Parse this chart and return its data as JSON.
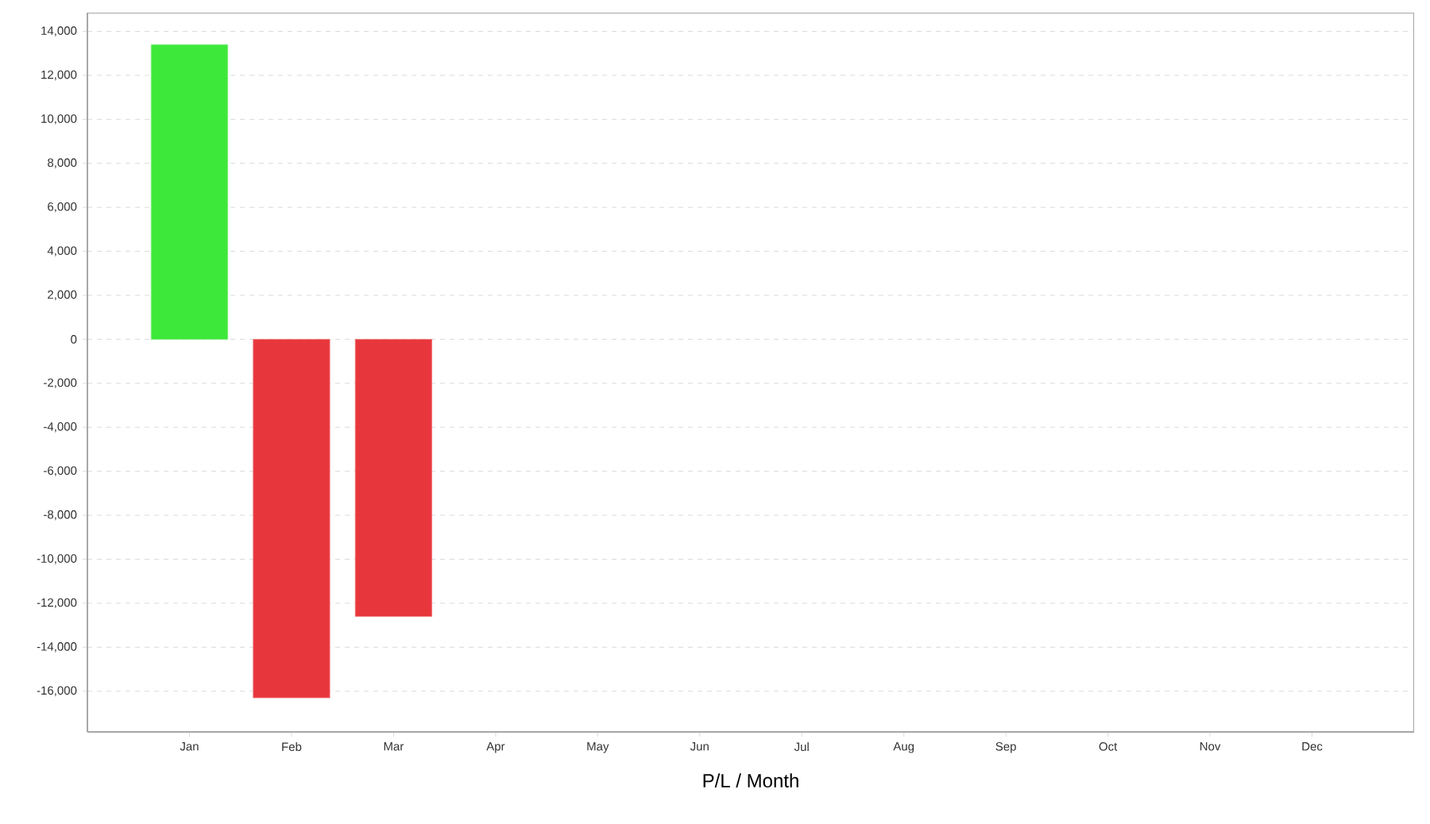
{
  "chart_data": {
    "type": "bar",
    "xlabel": "P/L / Month",
    "categories": [
      "Jan",
      "Feb",
      "Mar",
      "Apr",
      "May",
      "Jun",
      "Jul",
      "Aug",
      "Sep",
      "Oct",
      "Nov",
      "Dec"
    ],
    "values": [
      13400,
      -16300,
      -12600,
      null,
      null,
      null,
      null,
      null,
      null,
      null,
      null,
      null
    ],
    "colors": [
      "#3ee83a",
      "#e8373c",
      "#e8373c",
      "#e8373c",
      "#e8373c",
      "#e8373c",
      "#e8373c",
      "#e8373c",
      "#e8373c",
      "#e8373c",
      "#e8373c",
      "#e8373c"
    ],
    "ylim": [
      -17850,
      14850
    ],
    "yticks": [
      {
        "value": 14000,
        "label": "14,000"
      },
      {
        "value": 12000,
        "label": "12,000"
      },
      {
        "value": 10000,
        "label": "10,000"
      },
      {
        "value": 8000,
        "label": "8,000"
      },
      {
        "value": 6000,
        "label": "6,000"
      },
      {
        "value": 4000,
        "label": "4,000"
      },
      {
        "value": 2000,
        "label": "2,000"
      },
      {
        "value": 0,
        "label": "0"
      },
      {
        "value": -2000,
        "label": "-2,000"
      },
      {
        "value": -4000,
        "label": "-4,000"
      },
      {
        "value": -6000,
        "label": "-6,000"
      },
      {
        "value": -8000,
        "label": "-8,000"
      },
      {
        "value": -10000,
        "label": "-10,000"
      },
      {
        "value": -12000,
        "label": "-12,000"
      },
      {
        "value": -14000,
        "label": "-14,000"
      },
      {
        "value": -16000,
        "label": "-16,000"
      }
    ],
    "grid": "y"
  }
}
